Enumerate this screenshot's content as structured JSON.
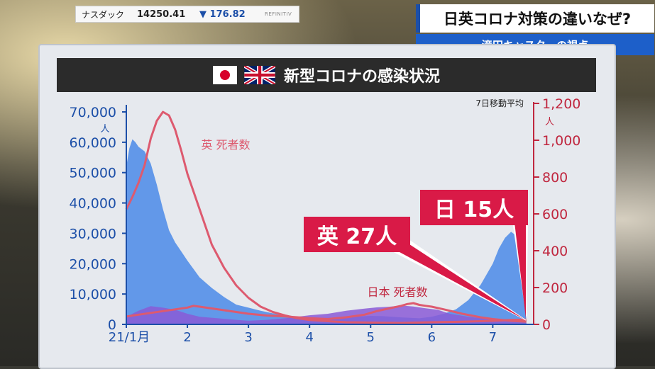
{
  "ticker": {
    "name": "ナスダック",
    "value": "14250.41",
    "arrow": "▼",
    "change": "176.82",
    "logo": "REFINITIV"
  },
  "headline": {
    "title": "日英コロナ対策の違いなぜ?",
    "subtitle": "滝田キャスターの視点"
  },
  "panel": {
    "title": "新型コロナの感染状況",
    "note": "7日移動平均"
  },
  "callouts": {
    "uk": "英 27人",
    "jp": "日 15人"
  },
  "colors": {
    "uk_cases": "#5b93e8",
    "jp_cases": "#8a5ad6",
    "deaths_line": "#dd5a6f",
    "accent": "#d91a47"
  },
  "chart_data": {
    "type": "area",
    "title": "新型コロナの感染状況",
    "y_left": {
      "unit": "人",
      "ticks": [
        "70,000",
        "60,000",
        "50,000",
        "40,000",
        "30,000",
        "20,000",
        "10,000",
        "0"
      ],
      "range": [
        0,
        70000
      ]
    },
    "y_right": {
      "unit": "人",
      "ticks": [
        "1,200",
        "1,000",
        "800",
        "600",
        "400",
        "200",
        "0"
      ],
      "range": [
        0,
        1200
      ]
    },
    "x_ticks": [
      "21/1月",
      "2",
      "3",
      "4",
      "5",
      "6",
      "7"
    ],
    "x_range": [
      1,
      7.6
    ],
    "series": [
      {
        "name": "",
        "axis": "left",
        "kind": "area",
        "x": [
          1.0,
          1.05,
          1.1,
          1.15,
          1.2,
          1.3,
          1.4,
          1.5,
          1.6,
          1.7,
          1.8,
          1.9,
          2.0,
          2.2,
          2.4,
          2.6,
          2.8,
          3.0,
          3.2,
          3.5,
          3.8,
          4.0,
          4.2,
          4.5,
          4.8,
          5.0,
          5.2,
          5.5,
          5.8,
          6.0,
          6.2,
          6.4,
          6.6,
          6.8,
          7.0,
          7.1,
          7.2,
          7.3,
          7.4,
          7.5,
          7.55
        ],
        "y": [
          52000,
          58000,
          61000,
          60000,
          58500,
          57000,
          53000,
          46000,
          38000,
          31000,
          27000,
          24000,
          21000,
          15500,
          12000,
          9000,
          6500,
          5500,
          4500,
          3200,
          2500,
          2300,
          2100,
          2300,
          2600,
          2800,
          2700,
          2300,
          2000,
          2500,
          3500,
          5000,
          8000,
          13000,
          20000,
          25000,
          28500,
          30500,
          29000,
          15000,
          2000
        ]
      },
      {
        "name": "",
        "axis": "left",
        "kind": "area",
        "x": [
          1.0,
          1.2,
          1.4,
          1.6,
          1.8,
          2.0,
          2.2,
          2.5,
          2.8,
          3.0,
          3.3,
          3.6,
          4.0,
          4.3,
          4.6,
          4.9,
          5.1,
          5.3,
          5.5,
          5.7,
          5.9,
          6.1,
          6.3,
          6.6,
          6.9,
          7.2,
          7.55
        ],
        "y": [
          2500,
          4500,
          6000,
          5500,
          4800,
          3500,
          2500,
          2000,
          1500,
          1200,
          1500,
          2000,
          3000,
          3500,
          4500,
          5200,
          5600,
          5800,
          6200,
          5900,
          5300,
          4800,
          3500,
          2500,
          1800,
          1200,
          500
        ]
      },
      {
        "name": "英 死者数",
        "axis": "right",
        "kind": "line",
        "x": [
          1.0,
          1.1,
          1.2,
          1.3,
          1.4,
          1.5,
          1.6,
          1.7,
          1.8,
          1.9,
          2.0,
          2.2,
          2.4,
          2.6,
          2.8,
          3.0,
          3.2,
          3.4,
          3.6,
          3.8,
          4.0,
          4.3,
          4.6,
          5.0,
          5.5,
          6.0,
          6.5,
          7.0,
          7.3,
          7.55
        ],
        "y": [
          650,
          720,
          800,
          900,
          1050,
          1150,
          1200,
          1180,
          1100,
          980,
          850,
          650,
          450,
          320,
          220,
          150,
          100,
          70,
          50,
          35,
          25,
          18,
          12,
          10,
          8,
          12,
          15,
          20,
          25,
          27
        ]
      },
      {
        "name": "日本 死者数",
        "axis": "right",
        "kind": "line",
        "x": [
          1.0,
          1.2,
          1.4,
          1.6,
          1.8,
          2.0,
          2.1,
          2.2,
          2.4,
          2.6,
          2.8,
          3.0,
          3.3,
          3.6,
          4.0,
          4.3,
          4.6,
          4.9,
          5.1,
          5.3,
          5.5,
          5.6,
          5.7,
          5.8,
          5.9,
          6.0,
          6.2,
          6.5,
          6.8,
          7.0,
          7.3,
          7.55
        ],
        "y": [
          45,
          55,
          65,
          75,
          85,
          95,
          105,
          100,
          90,
          80,
          70,
          60,
          50,
          45,
          35,
          30,
          40,
          55,
          75,
          90,
          105,
          115,
          120,
          110,
          105,
          100,
          85,
          60,
          40,
          30,
          20,
          15
        ]
      }
    ],
    "labels": {
      "uk_deaths": "英 死者数",
      "jp_deaths": "日本 死者数"
    },
    "grid": false
  }
}
